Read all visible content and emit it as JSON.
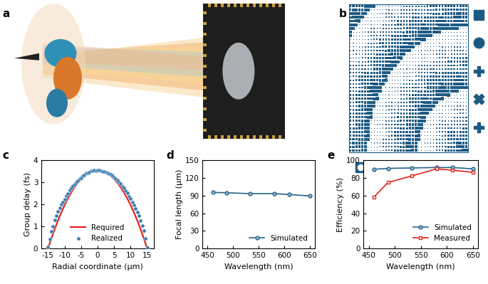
{
  "illustration_labels": [
    "a",
    "b"
  ],
  "chart_data": [
    {
      "type": "line",
      "title": "c",
      "x_label": "Radial coordinate (μm)",
      "y_label": "Group delay (fs)",
      "xlim": [
        -17,
        17
      ],
      "xticks": [
        -15,
        -10,
        -5,
        0,
        5,
        10,
        15
      ],
      "ylim": [
        0,
        4
      ],
      "yticks": [
        0,
        1,
        2,
        3,
        4
      ],
      "legend": "lower center",
      "series": [
        {
          "name": "Required",
          "type": "line",
          "color": "#e8211c",
          "line_style": "solid",
          "x": [
            -15,
            -14,
            -13,
            -12,
            -11,
            -10,
            -9,
            -8,
            -7,
            -6,
            -5,
            -4,
            -3,
            -2,
            -1,
            0,
            1,
            2,
            3,
            4,
            5,
            6,
            7,
            8,
            9,
            10,
            11,
            12,
            13,
            14,
            15
          ],
          "values": [
            0,
            0.46,
            0.88,
            1.28,
            1.64,
            1.97,
            2.27,
            2.54,
            2.78,
            2.98,
            3.16,
            3.3,
            3.41,
            3.49,
            3.53,
            3.55,
            3.53,
            3.49,
            3.41,
            3.3,
            3.16,
            2.98,
            2.78,
            2.54,
            2.27,
            1.97,
            1.64,
            1.28,
            0.88,
            0.46,
            0
          ]
        },
        {
          "name": "Realized",
          "type": "scatter",
          "color": "#3a7ab0",
          "marker": "circle",
          "x": [
            -15,
            -14.5,
            -14,
            -13.5,
            -13,
            -12.5,
            -12,
            -11.5,
            -11,
            -10.5,
            -10,
            -9.5,
            -9,
            -8.5,
            -8,
            -7.5,
            -7,
            -6.5,
            -6,
            -5.5,
            -5,
            -4.5,
            -4,
            -3.5,
            -3,
            -2.5,
            -2,
            -1.5,
            -1,
            -0.5,
            0,
            0.5,
            1,
            1.5,
            2,
            2.5,
            3,
            3.5,
            4,
            4.5,
            5,
            5.5,
            6,
            6.5,
            7,
            7.5,
            8,
            8.5,
            9,
            9.5,
            10,
            10.5,
            11,
            11.5,
            12,
            12.5,
            13,
            13.5,
            14,
            14.5,
            15
          ],
          "values": [
            0.08,
            0.42,
            0.78,
            1.02,
            1.3,
            1.5,
            1.68,
            1.85,
            2.0,
            2.12,
            2.25,
            2.4,
            2.5,
            2.64,
            2.74,
            2.85,
            2.93,
            3.02,
            3.08,
            3.18,
            3.22,
            3.3,
            3.35,
            3.42,
            3.44,
            3.48,
            3.52,
            3.53,
            3.55,
            3.54,
            3.55,
            3.56,
            3.54,
            3.5,
            3.5,
            3.47,
            3.44,
            3.4,
            3.36,
            3.29,
            3.25,
            3.16,
            3.1,
            3.0,
            2.95,
            2.82,
            2.76,
            2.62,
            2.52,
            2.38,
            2.27,
            2.1,
            1.98,
            1.82,
            1.66,
            1.48,
            1.28,
            1.05,
            0.8,
            0.45,
            0.05
          ]
        }
      ]
    },
    {
      "type": "line",
      "title": "d",
      "x_label": "Wavelength (nm)",
      "y_label": "Focal length (μm)",
      "xlim": [
        440,
        660
      ],
      "xticks": [
        450,
        500,
        550,
        600,
        650
      ],
      "ylim": [
        0,
        150
      ],
      "yticks": [
        0,
        30,
        60,
        90,
        120,
        150
      ],
      "legend": "lower right",
      "series": [
        {
          "name": "Simulated",
          "color": "#2a6289",
          "marker": "circle",
          "line_style": "solid",
          "x": [
            460,
            487,
            533,
            580,
            610,
            650
          ],
          "values": [
            95.5,
            95,
            93.5,
            93.5,
            92,
            89.5
          ]
        }
      ]
    },
    {
      "type": "line",
      "title": "e",
      "x_label": "Wavelength (nm)",
      "y_label": "Efficiency (%)",
      "xlim": [
        440,
        660
      ],
      "xticks": [
        450,
        500,
        550,
        600,
        650
      ],
      "ylim": [
        0,
        100
      ],
      "yticks": [
        0,
        20,
        40,
        60,
        80,
        100
      ],
      "legend": "lower right",
      "series": [
        {
          "name": "Simulated",
          "color": "#2a6289",
          "marker": "circle",
          "line_style": "solid",
          "x": [
            460,
            487,
            533,
            580,
            610,
            650
          ],
          "values": [
            90,
            91,
            91.5,
            92,
            92,
            90.5
          ]
        },
        {
          "name": "Measured",
          "color": "#e8211c",
          "marker": "square",
          "line_style": "solid",
          "x": [
            460,
            487,
            533,
            580,
            610,
            650
          ],
          "values": [
            58.5,
            75,
            82.5,
            90.5,
            89,
            86.5
          ]
        }
      ]
    }
  ]
}
